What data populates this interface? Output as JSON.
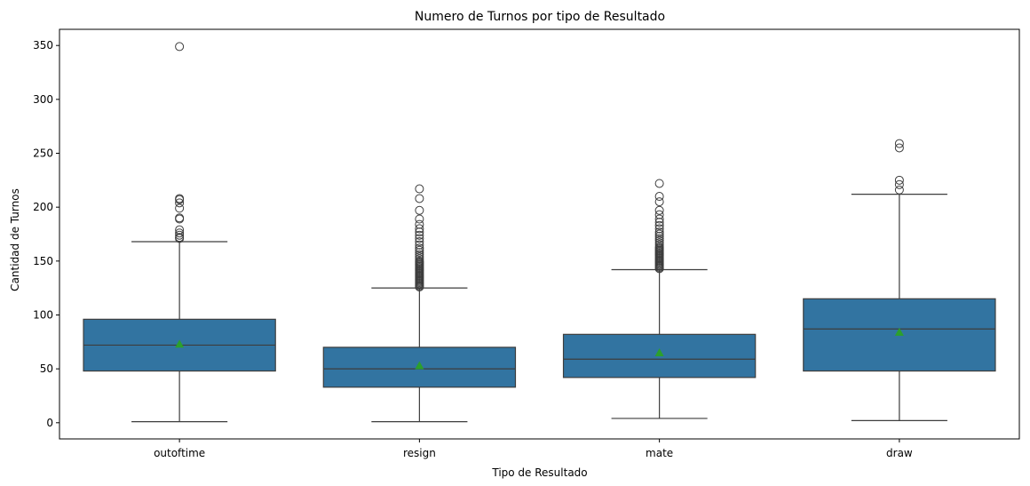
{
  "chart_data": {
    "type": "box",
    "title": "Numero de Turnos por tipo de Resultado",
    "xlabel": "Tipo de Resultado",
    "ylabel": "Cantidad de Turnos",
    "ylim": [
      -15,
      365
    ],
    "yticks": [
      0,
      50,
      100,
      150,
      200,
      250,
      300,
      350
    ],
    "grid": false,
    "box_color": "#3274a1",
    "line_color": "#3d3d3d",
    "mean_marker_color": "#2ca02c",
    "categories": [
      "outoftime",
      "resign",
      "mate",
      "draw"
    ],
    "boxes": [
      {
        "category": "outoftime",
        "whisker_low": 1,
        "q1": 48,
        "median": 72,
        "q3": 96,
        "whisker_high": 168,
        "mean": 73,
        "outliers": [
          171,
          172,
          174,
          176,
          179,
          189,
          190,
          199,
          204,
          207,
          208,
          349
        ]
      },
      {
        "category": "resign",
        "whisker_low": 1,
        "q1": 33,
        "median": 50,
        "q3": 70,
        "whisker_high": 125,
        "mean": 53,
        "outliers": [
          126,
          127,
          128,
          129,
          130,
          131,
          132,
          133,
          134,
          135,
          136,
          137,
          138,
          139,
          140,
          141,
          142,
          143,
          144,
          145,
          146,
          147,
          148,
          149,
          150,
          152,
          154,
          156,
          158,
          160,
          162,
          165,
          168,
          171,
          174,
          177,
          180,
          184,
          189,
          197,
          208,
          217
        ]
      },
      {
        "category": "mate",
        "whisker_low": 4,
        "q1": 42,
        "median": 59,
        "q3": 82,
        "whisker_high": 142,
        "mean": 65,
        "outliers": [
          143,
          144,
          145,
          146,
          147,
          148,
          149,
          150,
          151,
          152,
          153,
          154,
          155,
          156,
          157,
          158,
          159,
          160,
          161,
          162,
          163,
          165,
          167,
          169,
          171,
          173,
          175,
          177,
          180,
          183,
          186,
          189,
          193,
          197,
          205,
          210,
          222
        ]
      },
      {
        "category": "draw",
        "whisker_low": 2,
        "q1": 48,
        "median": 87,
        "q3": 115,
        "whisker_high": 212,
        "mean": 84,
        "outliers": [
          216,
          221,
          225,
          255,
          259
        ]
      }
    ]
  }
}
